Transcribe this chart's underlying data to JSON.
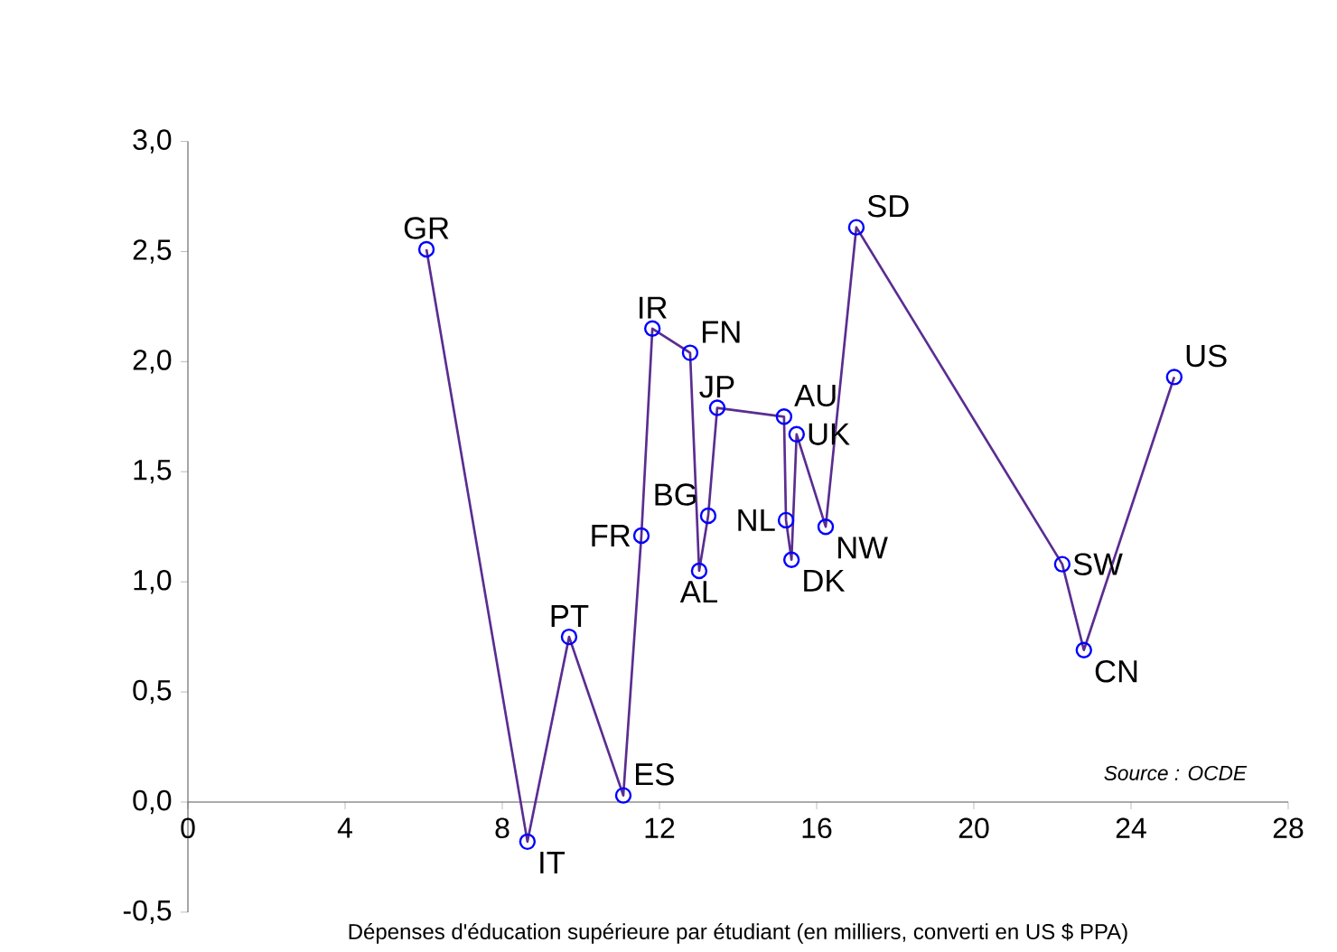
{
  "chart_data": {
    "type": "line",
    "xlabel": "Dépenses d'éducation supérieure par étudiant (en milliers, converti en US $ PPA)",
    "series": [
      {
        "color": "#5a2d91",
        "x": [
          6.07,
          8.64,
          9.7,
          11.08,
          11.54,
          11.82,
          12.78,
          13.01,
          13.24,
          13.47,
          15.17,
          15.22,
          15.36,
          15.49,
          16.23,
          17.01,
          22.25,
          22.8,
          25.1
        ],
        "values": [
          2.51,
          -0.18,
          0.75,
          0.03,
          1.21,
          2.15,
          2.04,
          1.05,
          1.3,
          1.79,
          1.75,
          1.28,
          1.1,
          1.67,
          1.25,
          2.61,
          1.08,
          0.69,
          1.93
        ]
      }
    ],
    "annotations": [
      {
        "text": "GR",
        "x": 6.07,
        "y": 2.51
      },
      {
        "text": "IT",
        "x": 8.64,
        "y": -0.18
      },
      {
        "text": "PT",
        "x": 9.7,
        "y": 0.75
      },
      {
        "text": "ES",
        "x": 11.08,
        "y": 0.03
      },
      {
        "text": "FR",
        "x": 11.54,
        "y": 1.21
      },
      {
        "text": "IR",
        "x": 11.82,
        "y": 2.15
      },
      {
        "text": "FN",
        "x": 12.78,
        "y": 2.04
      },
      {
        "text": "AL",
        "x": 13.01,
        "y": 1.05
      },
      {
        "text": "BG",
        "x": 13.24,
        "y": 1.3
      },
      {
        "text": "JP",
        "x": 13.47,
        "y": 1.79
      },
      {
        "text": "AU",
        "x": 15.17,
        "y": 1.75
      },
      {
        "text": "NL",
        "x": 15.22,
        "y": 1.28
      },
      {
        "text": "DK",
        "x": 15.36,
        "y": 1.1
      },
      {
        "text": "UK",
        "x": 15.49,
        "y": 1.67
      },
      {
        "text": "NW",
        "x": 16.23,
        "y": 1.25
      },
      {
        "text": "SD",
        "x": 17.01,
        "y": 2.61
      },
      {
        "text": "SW",
        "x": 22.25,
        "y": 1.08
      },
      {
        "text": "CN",
        "x": 22.8,
        "y": 0.69
      },
      {
        "text": "US",
        "x": 25.1,
        "y": 1.93
      },
      "Source : OCDE"
    ],
    "xlim": [
      0,
      28
    ],
    "xticks": [
      0,
      4,
      8,
      12,
      16,
      20,
      24,
      28
    ],
    "ylim": [
      -0.5,
      3
    ],
    "yticks": [
      {
        "value": -0.5,
        "label": "-0,5"
      },
      {
        "value": 0,
        "label": "0,0"
      },
      {
        "value": 0.5,
        "label": "0,5"
      },
      {
        "value": 1,
        "label": "1,0"
      },
      {
        "value": 1.5,
        "label": "1,5"
      },
      {
        "value": 2,
        "label": "2,0"
      },
      {
        "value": 2.5,
        "label": "2,5"
      },
      {
        "value": 3,
        "label": "3,0"
      }
    ],
    "marker": "circle",
    "line_style": "solid",
    "grid": false
  }
}
